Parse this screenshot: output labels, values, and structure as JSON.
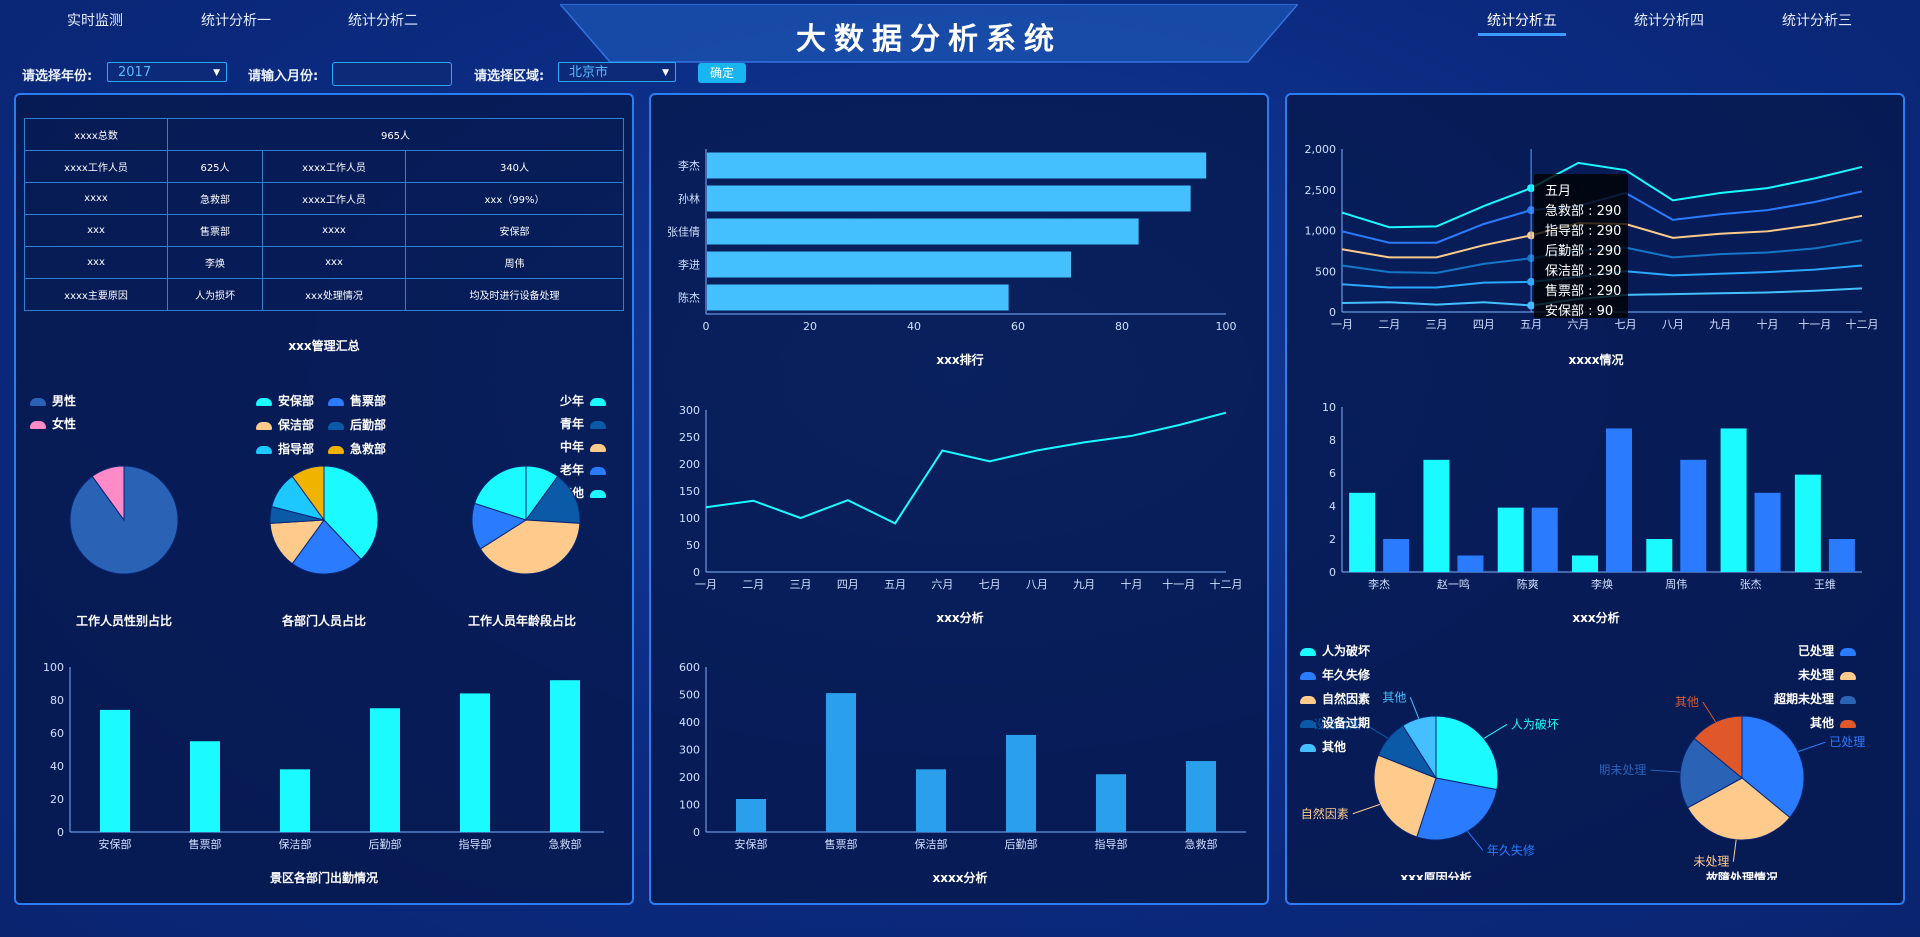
{
  "header": {
    "title": "大数据分析系统",
    "nav_left": [
      "实时监测",
      "统计分析一",
      "统计分析二"
    ],
    "nav_right": [
      "统计分析五",
      "统计分析四",
      "统计分析三"
    ]
  },
  "filters": {
    "year_label": "请选择年份:",
    "year_value": "2017",
    "month_label": "请输入月份:",
    "month_value": "",
    "area_label": "请选择区域:",
    "area_value": "北京市",
    "confirm": "确定"
  },
  "summary_table": {
    "row1": {
      "label": "xxxx总数",
      "value": "965人"
    },
    "rows": [
      [
        "xxxx工作人员",
        "625人",
        "xxxx工作人员",
        "340人"
      ],
      [
        "xxxx",
        "急救部",
        "xxxx工作人员",
        "xxx（99%）"
      ],
      [
        "xxx",
        "售票部",
        "xxxx",
        "安保部"
      ],
      [
        "xxx",
        "李焕",
        "xxx",
        "周伟"
      ],
      [
        "xxxx主要原因",
        "人为损坏",
        "xxx处理情况",
        "均及时进行设备处理"
      ]
    ],
    "caption": "xxx管理汇总"
  },
  "colors": {
    "accent": "#1bfbff",
    "blue": "#2b7bff",
    "sky": "#44c0ff",
    "bar2": "#2aa0ec",
    "orange": "#ffcb8c",
    "darkblue": "#2a62b6",
    "gold": "#f0b400",
    "pink": "#ff8ac8",
    "red": "#e0582a"
  },
  "gender_pie": {
    "caption": "工作人员性别占比",
    "legend": [
      "男性",
      "女性"
    ],
    "values": [
      90,
      10
    ]
  },
  "dept_pie": {
    "caption": "各部门人员占比",
    "legend": [
      "安保部",
      "售票部",
      "保洁部",
      "后勤部",
      "指导部",
      "急救部"
    ],
    "values": [
      38,
      22,
      14,
      5,
      11,
      10
    ]
  },
  "age_pie": {
    "caption": "工作人员年龄段占比",
    "legend": [
      "少年",
      "青年",
      "中年",
      "老年",
      "其他"
    ],
    "values": [
      10,
      16,
      40,
      14,
      20
    ]
  },
  "months": [
    "一月",
    "二月",
    "三月",
    "四月",
    "五月",
    "六月",
    "七月",
    "八月",
    "九月",
    "十月",
    "十一月",
    "十二月"
  ],
  "chart_data": [
    {
      "type": "bar",
      "title": "景区各部门出勤情况",
      "categories": [
        "安保部",
        "售票部",
        "保洁部",
        "后勤部",
        "指导部",
        "急救部"
      ],
      "values": [
        74,
        55,
        38,
        75,
        84,
        92
      ],
      "ylim": [
        0,
        100
      ]
    },
    {
      "type": "bar",
      "orientation": "horizontal",
      "title": "xxx排行",
      "categories": [
        "李杰",
        "孙林",
        "张佳倩",
        "李进",
        "陈杰"
      ],
      "values": [
        96,
        93,
        83,
        70,
        58
      ],
      "xlim": [
        0,
        100
      ]
    },
    {
      "type": "line",
      "title": "xxx分析",
      "categories": [
        "一月",
        "二月",
        "三月",
        "四月",
        "五月",
        "六月",
        "七月",
        "八月",
        "九月",
        "十月",
        "十一月",
        "十二月"
      ],
      "values": [
        120,
        132,
        100,
        133,
        90,
        225,
        205,
        225,
        240,
        252,
        272,
        295
      ],
      "ylim": [
        0,
        300
      ]
    },
    {
      "type": "bar",
      "title": "xxxx分析",
      "categories": [
        "安保部",
        "售票部",
        "保洁部",
        "后勤部",
        "指导部",
        "急救部"
      ],
      "values": [
        120,
        505,
        228,
        353,
        210,
        258
      ],
      "ylim": [
        0,
        600
      ]
    },
    {
      "type": "line",
      "title": "xxxx情况",
      "categories": [
        "一月",
        "二月",
        "三月",
        "四月",
        "五月",
        "六月",
        "七月",
        "八月",
        "九月",
        "十月",
        "十一月",
        "十二月"
      ],
      "ylim": [
        0,
        2000
      ],
      "series": [
        {
          "name": "五月",
          "values": [
            1220,
            1040,
            1050,
            1300,
            1520,
            1830,
            1740,
            1370,
            1460,
            1520,
            1640,
            1780
          ]
        },
        {
          "name": "急救部",
          "values": [
            990,
            850,
            850,
            1080,
            1250,
            1300,
            1460,
            1130,
            1200,
            1250,
            1350,
            1480
          ]
        },
        {
          "name": "指导部",
          "values": [
            770,
            670,
            670,
            820,
            940,
            1090,
            1080,
            910,
            960,
            990,
            1070,
            1180
          ]
        },
        {
          "name": "后勤部",
          "values": [
            570,
            490,
            480,
            590,
            660,
            750,
            790,
            670,
            710,
            730,
            780,
            880
          ]
        },
        {
          "name": "保洁部",
          "values": [
            340,
            300,
            300,
            360,
            370,
            430,
            500,
            450,
            470,
            490,
            520,
            570
          ]
        },
        {
          "name": "售票部",
          "values": [
            110,
            120,
            90,
            120,
            80,
            160,
            210,
            220,
            230,
            240,
            260,
            290
          ]
        }
      ]
    },
    {
      "type": "bar",
      "title": "xxx分析",
      "categories": [
        "李杰",
        "赵一鸣",
        "陈爽",
        "李焕",
        "周伟",
        "张杰",
        "王维"
      ],
      "ylim": [
        0,
        10
      ],
      "series": [
        {
          "values": [
            4.8,
            6.8,
            3.9,
            1.0,
            2.0,
            8.7,
            5.9
          ]
        },
        {
          "values": [
            2.0,
            1.0,
            3.9,
            8.7,
            6.8,
            4.8,
            2.0
          ]
        }
      ]
    },
    {
      "type": "pie",
      "title": "xxx原因分析",
      "labels": [
        "人为破坏",
        "年久失修",
        "自然因素",
        "设备过期",
        "其他"
      ],
      "values": [
        28,
        27,
        26,
        10,
        9
      ]
    },
    {
      "type": "pie",
      "title": "故障处理情况",
      "labels": [
        "已处理",
        "未处理",
        "超期未处理",
        "其他"
      ],
      "values": [
        36,
        31,
        19,
        14
      ]
    }
  ],
  "tooltip": {
    "title": "五月",
    "items": [
      "急救部 : 290",
      "指导部 : 290",
      "后勤部 : 290",
      "保洁部 : 290",
      "售票部 : 290",
      "安保部 : 90"
    ]
  },
  "reason_legend": [
    "人为破坏",
    "年久失修",
    "自然因素",
    "设备过期",
    "其他"
  ],
  "handle_legend": [
    "已处理",
    "未处理",
    "超期未处理",
    "其他"
  ]
}
